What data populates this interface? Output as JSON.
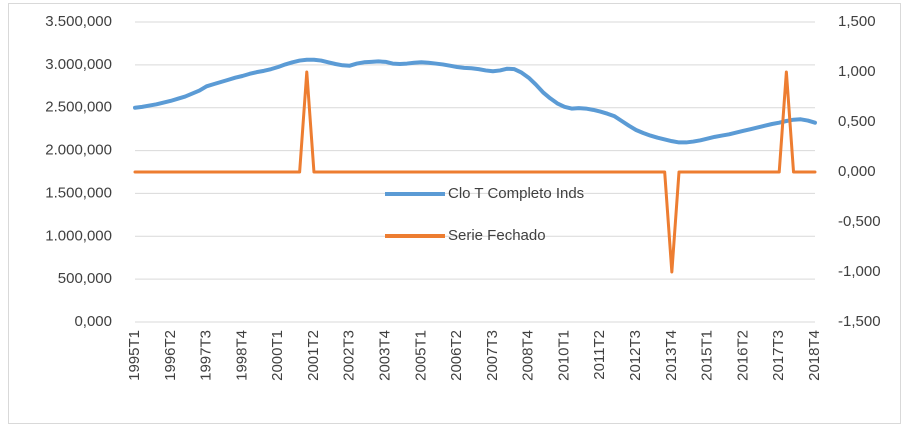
{
  "chart_data": {
    "type": "line",
    "categories": [
      "1995T1",
      null,
      null,
      null,
      null,
      "1996T2",
      null,
      null,
      null,
      null,
      "1997T3",
      null,
      null,
      null,
      null,
      "1998T4",
      null,
      null,
      null,
      null,
      "2000T1",
      null,
      null,
      null,
      null,
      "2001T2",
      null,
      null,
      null,
      null,
      "2002T3",
      null,
      null,
      null,
      null,
      "2003T4",
      null,
      null,
      null,
      null,
      "2005T1",
      null,
      null,
      null,
      null,
      "2006T2",
      null,
      null,
      null,
      null,
      "2007T3",
      null,
      null,
      null,
      null,
      "2008T4",
      null,
      null,
      null,
      null,
      "2010T1",
      null,
      null,
      null,
      null,
      "2011T2",
      null,
      null,
      null,
      null,
      "2012T3",
      null,
      null,
      null,
      null,
      "2013T4",
      null,
      null,
      null,
      null,
      "2015T1",
      null,
      null,
      null,
      null,
      "2016T2",
      null,
      null,
      null,
      null,
      "2017T3",
      null,
      null,
      null,
      null,
      "2018T4"
    ],
    "series": [
      {
        "name": "Clo T Completo Inds",
        "color": "#5b9bd5",
        "values": [
          2500000,
          2510000,
          2525000,
          2540000,
          2560000,
          2580000,
          2605000,
          2630000,
          2665000,
          2700000,
          2750000,
          2775000,
          2800000,
          2825000,
          2850000,
          2870000,
          2895000,
          2915000,
          2930000,
          2950000,
          2975000,
          3005000,
          3030000,
          3050000,
          3060000,
          3060000,
          3050000,
          3030000,
          3010000,
          2995000,
          2990000,
          3015000,
          3030000,
          3035000,
          3040000,
          3035000,
          3015000,
          3010000,
          3015000,
          3025000,
          3030000,
          3025000,
          3015000,
          3005000,
          2990000,
          2975000,
          2965000,
          2960000,
          2950000,
          2935000,
          2925000,
          2935000,
          2955000,
          2950000,
          2910000,
          2850000,
          2770000,
          2680000,
          2610000,
          2550000,
          2510000,
          2490000,
          2495000,
          2490000,
          2475000,
          2455000,
          2430000,
          2400000,
          2345000,
          2290000,
          2240000,
          2205000,
          2175000,
          2150000,
          2130000,
          2110000,
          2095000,
          2095000,
          2105000,
          2120000,
          2140000,
          2160000,
          2175000,
          2190000,
          2210000,
          2230000,
          2250000,
          2270000,
          2290000,
          2310000,
          2325000,
          2345000,
          2360000,
          2365000,
          2350000,
          2325000
        ]
      },
      {
        "name": "Serie Fechado",
        "color": "#ed7d31",
        "axis": "y2",
        "values": [
          0,
          0,
          0,
          0,
          0,
          0,
          0,
          0,
          0,
          0,
          0,
          0,
          0,
          0,
          0,
          0,
          0,
          0,
          0,
          0,
          0,
          0,
          0,
          0,
          1,
          0,
          0,
          0,
          0,
          0,
          0,
          0,
          0,
          0,
          0,
          0,
          0,
          0,
          0,
          0,
          0,
          0,
          0,
          0,
          0,
          0,
          0,
          0,
          0,
          0,
          0,
          0,
          0,
          0,
          0,
          0,
          0,
          0,
          0,
          0,
          0,
          0,
          0,
          0,
          0,
          0,
          0,
          0,
          0,
          0,
          0,
          0,
          0,
          0,
          0,
          -1,
          0,
          0,
          0,
          0,
          0,
          0,
          0,
          0,
          0,
          0,
          0,
          0,
          0,
          0,
          0,
          1,
          0,
          0,
          0,
          0
        ]
      }
    ],
    "ylim": [
      0,
      3500000
    ],
    "yticks": [
      {
        "value": 0,
        "label": "0,000"
      },
      {
        "value": 500000,
        "label": "500,000"
      },
      {
        "value": 1000000,
        "label": "1.000,000"
      },
      {
        "value": 1500000,
        "label": "1.500,000"
      },
      {
        "value": 2000000,
        "label": "2.000,000"
      },
      {
        "value": 2500000,
        "label": "2.500,000"
      },
      {
        "value": 3000000,
        "label": "3.000,000"
      },
      {
        "value": 3500000,
        "label": "3.500,000"
      }
    ],
    "y2lim": [
      -1.5,
      1.5
    ],
    "y2ticks": [
      {
        "value": -1.5,
        "label": "-1,500"
      },
      {
        "value": -1,
        "label": "-1,000"
      },
      {
        "value": -0.5,
        "label": "-0,500"
      },
      {
        "value": 0,
        "label": "0,000"
      },
      {
        "value": 0.5,
        "label": "0,500"
      },
      {
        "value": 1,
        "label": "1,000"
      },
      {
        "value": 1.5,
        "label": "1,500"
      }
    ],
    "grid": true,
    "legend": "center"
  }
}
